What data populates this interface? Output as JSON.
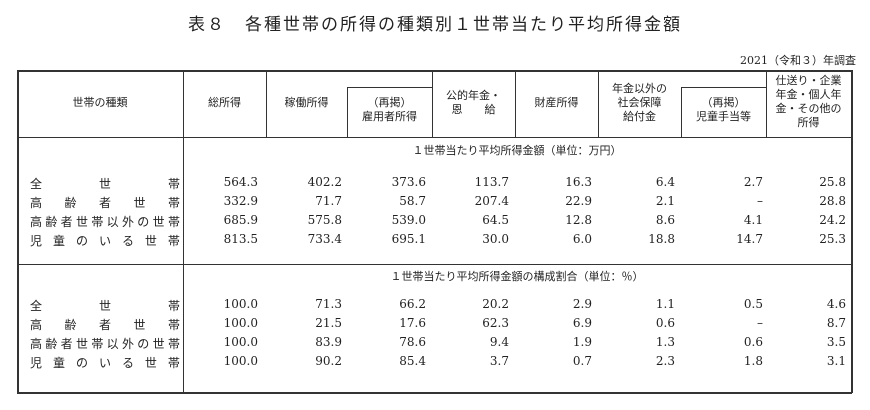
{
  "title": "表８　各種世帯の所得の種類別１世帯当たり平均所得金額",
  "note": "2021（令和３）年調査",
  "headers": {
    "household_type": "世帯の種類",
    "total_income": "総所得",
    "work_income": "稼働所得",
    "employed_sub": "（再掲）\n雇用者所得",
    "pension": "公的年金・\n恩　　給",
    "property": "財産所得",
    "social_security": "年金以外の\n社会保障\n給付金",
    "child_allowance_sub": "（再掲）\n児童手当等",
    "other": "仕送り・企業\n年金・個人年\n金・その他の\n所得"
  },
  "section1": {
    "caption": "１世帯当たり平均所得金額（単位：万円）",
    "rows": [
      {
        "label": "全世帯",
        "values": [
          "564.3",
          "402.2",
          "373.6",
          "113.7",
          "16.3",
          "6.4",
          "2.7",
          "25.8"
        ]
      },
      {
        "label": "高齢者世帯",
        "values": [
          "332.9",
          "71.7",
          "58.7",
          "207.4",
          "22.9",
          "2.1",
          "-",
          "28.8"
        ]
      },
      {
        "label": "高齢者世帯以外の世帯",
        "values": [
          "685.9",
          "575.8",
          "539.0",
          "64.5",
          "12.8",
          "8.6",
          "4.1",
          "24.2"
        ]
      },
      {
        "label": "児童のいる世帯",
        "values": [
          "813.5",
          "733.4",
          "695.1",
          "30.0",
          "6.0",
          "18.8",
          "14.7",
          "25.3"
        ]
      }
    ]
  },
  "section2": {
    "caption": "１世帯当たり平均所得金額の構成割合（単位：％）",
    "rows": [
      {
        "label": "全世帯",
        "values": [
          "100.0",
          "71.3",
          "66.2",
          "20.2",
          "2.9",
          "1.1",
          "0.5",
          "4.6"
        ]
      },
      {
        "label": "高齢者世帯",
        "values": [
          "100.0",
          "21.5",
          "17.6",
          "62.3",
          "6.9",
          "0.6",
          "-",
          "8.7"
        ]
      },
      {
        "label": "高齢者世帯以外の世帯",
        "values": [
          "100.0",
          "83.9",
          "78.6",
          "9.4",
          "1.9",
          "1.3",
          "0.6",
          "3.5"
        ]
      },
      {
        "label": "児童のいる世帯",
        "values": [
          "100.0",
          "90.2",
          "85.4",
          "3.7",
          "0.7",
          "2.3",
          "1.8",
          "3.1"
        ]
      }
    ]
  }
}
